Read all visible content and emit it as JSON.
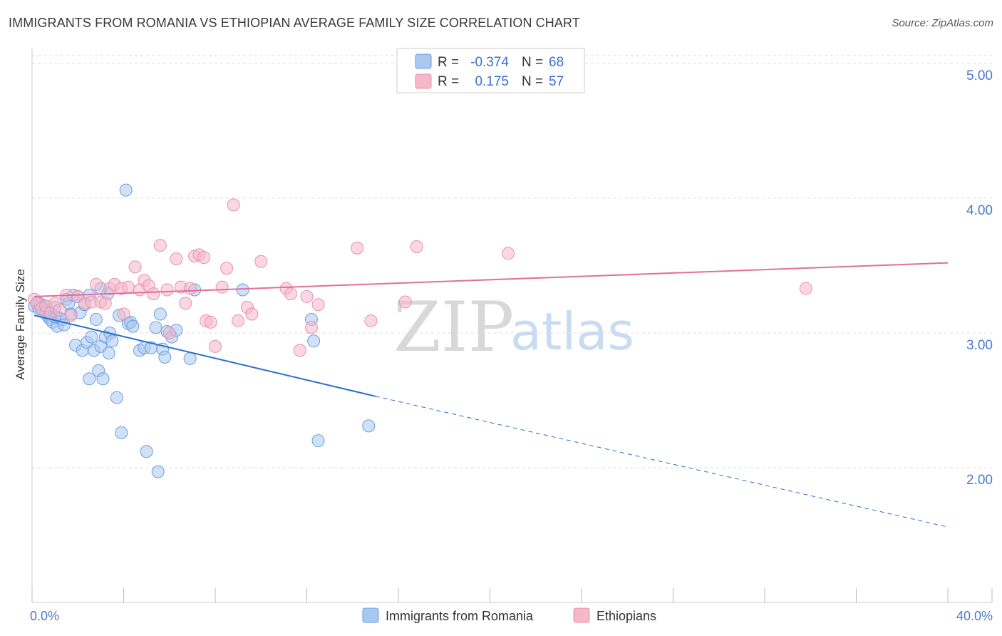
{
  "header": {
    "title": "IMMIGRANTS FROM ROMANIA VS ETHIOPIAN AVERAGE FAMILY SIZE CORRELATION CHART",
    "source": "Source: ZipAtlas.com"
  },
  "watermark": {
    "zip": "ZIP",
    "atlas": "atlas"
  },
  "legend": {
    "rows": [
      {
        "r_label": "R =",
        "r_value": "-0.374",
        "n_label": "N =",
        "n_value": "68",
        "color": "#a9c8f0"
      },
      {
        "r_label": "R =",
        "r_value": "0.175",
        "n_label": "N =",
        "n_value": "57",
        "color": "#f5b7ca"
      }
    ]
  },
  "bottom_legend": [
    {
      "label": "Immigrants from Romania",
      "color": "#a9c8f0"
    },
    {
      "label": "Ethiopians",
      "color": "#f5b7ca"
    }
  ],
  "colors": {
    "blue_fill": "#a9c8f0",
    "blue_stroke": "#6a9ee0",
    "blue_line": "#2a6fd0",
    "pink_fill": "#f5b7ca",
    "pink_stroke": "#e890ab",
    "pink_line": "#e0709a",
    "grid": "#dddddd",
    "tick_label": "#4a7ad0"
  },
  "chart_data": {
    "type": "scatter",
    "title": "IMMIGRANTS FROM ROMANIA VS ETHIOPIAN AVERAGE FAMILY SIZE CORRELATION CHART",
    "xlabel": "",
    "ylabel": "Average Family Size",
    "xlim": [
      0,
      40
    ],
    "ylim": [
      1.0,
      5.1
    ],
    "x_tick_labels": [
      {
        "value": 0,
        "label": "0.0%"
      },
      {
        "value": 40,
        "label": "40.0%"
      }
    ],
    "y_ticks": [
      {
        "value": 2.0,
        "label": "2.00"
      },
      {
        "value": 3.0,
        "label": "3.00"
      },
      {
        "value": 4.0,
        "label": "4.00"
      },
      {
        "value": 5.0,
        "label": "5.00"
      }
    ],
    "grid": true,
    "legend_position": "top-center",
    "series": [
      {
        "name": "Immigrants from Romania",
        "trend": {
          "x0": 0.1,
          "y0": 3.13,
          "x1": 15.0,
          "y1": 2.53,
          "dash_to_x": 40.0,
          "dash_to_y": 1.56
        },
        "points": [
          [
            0.1,
            3.2
          ],
          [
            0.2,
            3.22
          ],
          [
            0.3,
            3.18
          ],
          [
            0.4,
            3.21
          ],
          [
            0.5,
            3.16
          ],
          [
            0.6,
            3.2
          ],
          [
            0.7,
            3.12
          ],
          [
            0.8,
            3.1
          ],
          [
            0.9,
            3.08
          ],
          [
            1.0,
            3.19
          ],
          [
            1.1,
            3.05
          ],
          [
            1.2,
            3.11
          ],
          [
            1.3,
            3.1
          ],
          [
            1.4,
            3.06
          ],
          [
            1.5,
            3.25
          ],
          [
            1.6,
            3.22
          ],
          [
            1.7,
            3.14
          ],
          [
            1.8,
            3.28
          ],
          [
            1.9,
            2.91
          ],
          [
            2.0,
            3.27
          ],
          [
            2.1,
            3.15
          ],
          [
            2.2,
            2.87
          ],
          [
            2.3,
            3.21
          ],
          [
            2.4,
            2.93
          ],
          [
            2.5,
            2.66
          ],
          [
            2.6,
            2.97
          ],
          [
            2.7,
            2.87
          ],
          [
            2.8,
            3.1
          ],
          [
            2.9,
            2.72
          ],
          [
            3.0,
            2.9
          ],
          [
            3.1,
            2.66
          ],
          [
            3.2,
            2.97
          ],
          [
            3.3,
            3.29
          ],
          [
            3.35,
            2.85
          ],
          [
            3.4,
            3.0
          ],
          [
            3.5,
            2.94
          ],
          [
            3.0,
            3.33
          ],
          [
            3.8,
            3.13
          ],
          [
            3.7,
            2.52
          ],
          [
            3.9,
            2.26
          ],
          [
            4.1,
            4.06
          ],
          [
            4.2,
            3.07
          ],
          [
            4.3,
            3.08
          ],
          [
            4.4,
            3.05
          ],
          [
            4.7,
            2.87
          ],
          [
            4.9,
            2.89
          ],
          [
            5.0,
            2.12
          ],
          [
            5.2,
            2.89
          ],
          [
            5.4,
            3.04
          ],
          [
            5.5,
            1.97
          ],
          [
            5.6,
            3.14
          ],
          [
            5.7,
            2.88
          ],
          [
            5.8,
            2.82
          ],
          [
            5.9,
            3.01
          ],
          [
            6.1,
            2.97
          ],
          [
            6.3,
            3.02
          ],
          [
            6.9,
            2.81
          ],
          [
            7.1,
            3.32
          ],
          [
            9.2,
            3.32
          ],
          [
            12.2,
            3.1
          ],
          [
            12.3,
            2.94
          ],
          [
            12.5,
            2.2
          ],
          [
            14.7,
            2.31
          ],
          [
            0.3,
            3.22
          ],
          [
            0.4,
            3.18
          ],
          [
            1.0,
            3.12
          ],
          [
            2.5,
            3.28
          ],
          [
            0.6,
            3.15
          ]
        ]
      },
      {
        "name": "Ethiopians",
        "trend": {
          "x0": 0.1,
          "y0": 3.27,
          "x1": 40.0,
          "y1": 3.52
        },
        "points": [
          [
            0.1,
            3.25
          ],
          [
            0.2,
            3.22
          ],
          [
            0.4,
            3.18
          ],
          [
            0.6,
            3.2
          ],
          [
            0.8,
            3.15
          ],
          [
            1.0,
            3.22
          ],
          [
            1.2,
            3.17
          ],
          [
            1.5,
            3.28
          ],
          [
            1.7,
            3.13
          ],
          [
            2.0,
            3.27
          ],
          [
            2.3,
            3.22
          ],
          [
            2.6,
            3.23
          ],
          [
            2.8,
            3.36
          ],
          [
            3.0,
            3.23
          ],
          [
            3.2,
            3.22
          ],
          [
            3.4,
            3.33
          ],
          [
            3.6,
            3.36
          ],
          [
            3.9,
            3.33
          ],
          [
            4.0,
            3.14
          ],
          [
            4.2,
            3.34
          ],
          [
            4.5,
            3.49
          ],
          [
            4.7,
            3.32
          ],
          [
            4.9,
            3.39
          ],
          [
            5.1,
            3.35
          ],
          [
            5.3,
            3.29
          ],
          [
            5.6,
            3.65
          ],
          [
            5.9,
            3.32
          ],
          [
            6.0,
            3.0
          ],
          [
            6.3,
            3.55
          ],
          [
            6.5,
            3.34
          ],
          [
            6.7,
            3.22
          ],
          [
            6.9,
            3.33
          ],
          [
            7.1,
            3.57
          ],
          [
            7.3,
            3.58
          ],
          [
            7.6,
            3.09
          ],
          [
            7.8,
            3.08
          ],
          [
            8.0,
            2.9
          ],
          [
            8.3,
            3.34
          ],
          [
            8.5,
            3.48
          ],
          [
            8.8,
            3.95
          ],
          [
            9.0,
            3.09
          ],
          [
            9.4,
            3.19
          ],
          [
            9.6,
            3.14
          ],
          [
            10.0,
            3.53
          ],
          [
            11.1,
            3.33
          ],
          [
            11.3,
            3.29
          ],
          [
            11.7,
            2.87
          ],
          [
            12.0,
            3.27
          ],
          [
            12.2,
            3.04
          ],
          [
            12.5,
            3.21
          ],
          [
            14.2,
            3.63
          ],
          [
            14.8,
            3.09
          ],
          [
            16.3,
            3.23
          ],
          [
            16.8,
            3.64
          ],
          [
            20.8,
            3.59
          ],
          [
            33.8,
            3.33
          ],
          [
            7.5,
            3.56
          ]
        ]
      }
    ]
  }
}
